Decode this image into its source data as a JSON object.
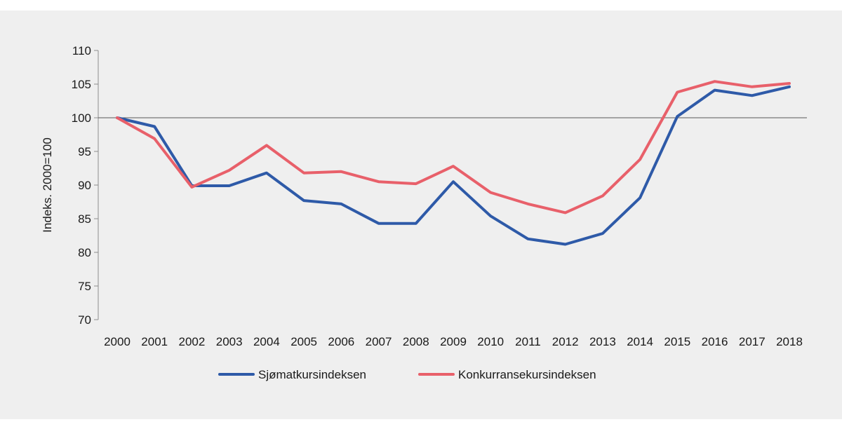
{
  "chart_data": {
    "type": "line",
    "title": "",
    "xlabel": "",
    "ylabel": "Indeks. 2000=100",
    "ylim": [
      70,
      110
    ],
    "yticks": [
      70,
      75,
      80,
      85,
      90,
      95,
      100,
      105,
      110
    ],
    "x": [
      "2000",
      "2001",
      "2002",
      "2003",
      "2004",
      "2005",
      "2006",
      "2007",
      "2008",
      "2009",
      "2010",
      "2011",
      "2012",
      "2013",
      "2014",
      "2015",
      "2016",
      "2017",
      "2018"
    ],
    "reference_line": 100,
    "grid": false,
    "legend_position": "bottom",
    "series": [
      {
        "name": "Sjømatkursindeksen",
        "color": "#2e5aa8",
        "values": [
          100,
          98.7,
          89.9,
          89.9,
          91.8,
          87.7,
          87.2,
          84.3,
          84.3,
          90.5,
          85.4,
          82.0,
          81.2,
          82.8,
          88.1,
          100.2,
          104.1,
          103.3,
          104.6
        ]
      },
      {
        "name": "Konkurransekursindeksen",
        "color": "#e8606a",
        "values": [
          100,
          96.9,
          89.7,
          92.2,
          95.9,
          91.8,
          92.0,
          90.5,
          90.2,
          92.8,
          88.9,
          87.2,
          85.9,
          88.4,
          93.8,
          103.8,
          105.4,
          104.6,
          105.1
        ]
      }
    ]
  }
}
